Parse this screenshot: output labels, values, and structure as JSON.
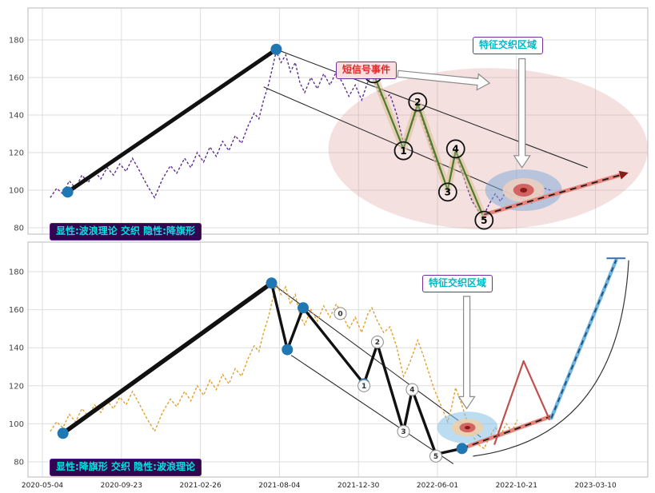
{
  "axes": {
    "x_ticks": [
      "2020-05-04",
      "2020-09-23",
      "2021-02-26",
      "2021-08-04",
      "2021-12-30",
      "2022-06-01",
      "2022-10-21",
      "2023-03-10"
    ],
    "y_ticks": [
      180,
      160,
      140,
      120,
      100,
      80
    ]
  },
  "labels": {
    "top_corner": "显性:波浪理论 交织 隐性:降旗形",
    "top_signal": "短信号事件",
    "top_region": "特征交织区域",
    "bottom_region": "特征交织区域",
    "bottom_corner": "显性:降旗形 交织 隐性:波浪理论"
  },
  "colors": {
    "purple_line": "#5c2d91",
    "orange_line": "#e0a030",
    "trend": "#111111",
    "green": "#4f7a28",
    "halo": "#d9c19a",
    "salmon": "#e8837a",
    "red": "#c0504d",
    "dark_red": "#8b1a1a",
    "blue_dot": "#1f77b4",
    "blue_rise": "#6ab4e4",
    "navy": "#2b4a6b",
    "pink_region": "#d98c8c",
    "target_blue": "#7ba7d7",
    "cyan_text": "#00b8c8",
    "purple_border": "#7030a0"
  },
  "chart_data": [
    {
      "type": "line",
      "name": "elliott-wave-explicit",
      "ylim": [
        76,
        197
      ],
      "price_series": [
        [
          0.1,
          96
        ],
        [
          0.18,
          101
        ],
        [
          0.26,
          98
        ],
        [
          0.34,
          105
        ],
        [
          0.42,
          101
        ],
        [
          0.5,
          108
        ],
        [
          0.58,
          104
        ],
        [
          0.66,
          110
        ],
        [
          0.74,
          106
        ],
        [
          0.82,
          112
        ],
        [
          0.9,
          108
        ],
        [
          0.98,
          114
        ],
        [
          1.06,
          110
        ],
        [
          1.14,
          117
        ],
        [
          1.22,
          111
        ],
        [
          1.32,
          103
        ],
        [
          1.42,
          96
        ],
        [
          1.52,
          106
        ],
        [
          1.62,
          113
        ],
        [
          1.7,
          109
        ],
        [
          1.8,
          117
        ],
        [
          1.88,
          112
        ],
        [
          1.96,
          120
        ],
        [
          2.04,
          115
        ],
        [
          2.12,
          123
        ],
        [
          2.2,
          118
        ],
        [
          2.28,
          126
        ],
        [
          2.36,
          121
        ],
        [
          2.44,
          129
        ],
        [
          2.52,
          125
        ],
        [
          2.6,
          134
        ],
        [
          2.68,
          141
        ],
        [
          2.74,
          138
        ],
        [
          2.8,
          148
        ],
        [
          2.86,
          156
        ],
        [
          2.9,
          163
        ],
        [
          2.96,
          174
        ],
        [
          3.02,
          168
        ],
        [
          3.08,
          172
        ],
        [
          3.14,
          163
        ],
        [
          3.2,
          168
        ],
        [
          3.26,
          157
        ],
        [
          3.32,
          152
        ],
        [
          3.4,
          160
        ],
        [
          3.48,
          154
        ],
        [
          3.56,
          162
        ],
        [
          3.64,
          156
        ],
        [
          3.72,
          163
        ],
        [
          3.8,
          157
        ],
        [
          3.88,
          150
        ],
        [
          3.96,
          156
        ],
        [
          4.04,
          148
        ],
        [
          4.12,
          158
        ],
        [
          4.17,
          161
        ],
        [
          4.24,
          154
        ],
        [
          4.32,
          148
        ],
        [
          4.4,
          151
        ],
        [
          4.48,
          141
        ],
        [
          4.57,
          125
        ],
        [
          4.63,
          130
        ],
        [
          4.7,
          138
        ],
        [
          4.75,
          144
        ],
        [
          4.82,
          136
        ],
        [
          4.89,
          127
        ],
        [
          4.96,
          118
        ],
        [
          5.04,
          110
        ],
        [
          5.13,
          101
        ],
        [
          5.18,
          109
        ],
        [
          5.23,
          119
        ],
        [
          5.3,
          111
        ],
        [
          5.37,
          102
        ],
        [
          5.44,
          94
        ],
        [
          5.52,
          89
        ],
        [
          5.59,
          87
        ],
        [
          5.66,
          93
        ],
        [
          5.73,
          98
        ],
        [
          5.8,
          94
        ],
        [
          5.87,
          100
        ],
        [
          5.94,
          96
        ],
        [
          6.01,
          102
        ],
        [
          6.08,
          98
        ],
        [
          6.15,
          103
        ],
        [
          6.22,
          99
        ],
        [
          6.29,
          97
        ],
        [
          6.36,
          101
        ],
        [
          6.43,
          100
        ]
      ],
      "trend_line": [
        [
          0.32,
          99
        ],
        [
          2.96,
          175
        ]
      ],
      "channel_lines": [
        [
          [
            2.96,
            175
          ],
          [
            6.9,
            112
          ]
        ],
        [
          [
            2.8,
            155
          ],
          [
            6.2,
            93
          ]
        ]
      ],
      "wave_line": [
        [
          4.19,
          162
        ],
        [
          4.57,
          122
        ],
        [
          4.75,
          146
        ],
        [
          5.13,
          100
        ],
        [
          5.23,
          121
        ],
        [
          5.59,
          85
        ]
      ],
      "wave_markers": [
        {
          "label": "0",
          "x": 4.19,
          "y": 162
        },
        {
          "label": "1",
          "x": 4.57,
          "y": 121
        },
        {
          "label": "2",
          "x": 4.75,
          "y": 147
        },
        {
          "label": "3",
          "x": 5.13,
          "y": 99
        },
        {
          "label": "4",
          "x": 5.23,
          "y": 122
        },
        {
          "label": "5",
          "x": 5.59,
          "y": 84
        }
      ],
      "pivot_dots": [
        [
          0.32,
          99
        ],
        [
          2.96,
          175
        ]
      ],
      "region_ellipse": {
        "cx": 5.64,
        "cy": 122,
        "rx": 2.02,
        "ry": 43
      },
      "target": {
        "cx": 6.09,
        "cy": 100
      },
      "projection": [
        [
          5.59,
          87
        ],
        [
          7.31,
          108
        ]
      ],
      "projection_arrow": true,
      "arrows": [
        {
          "from": [
            4.5,
            162
          ],
          "to": [
            5.66,
            157
          ]
        },
        {
          "from": [
            6.07,
            170
          ],
          "to": [
            6.07,
            112
          ]
        }
      ]
    },
    {
      "type": "line",
      "name": "descending-flag-explicit",
      "ylim": [
        72,
        196
      ],
      "price_series": [
        [
          0.1,
          96
        ],
        [
          0.18,
          101
        ],
        [
          0.26,
          98
        ],
        [
          0.34,
          105
        ],
        [
          0.42,
          101
        ],
        [
          0.5,
          108
        ],
        [
          0.58,
          104
        ],
        [
          0.66,
          110
        ],
        [
          0.74,
          106
        ],
        [
          0.82,
          112
        ],
        [
          0.9,
          108
        ],
        [
          0.98,
          114
        ],
        [
          1.06,
          110
        ],
        [
          1.14,
          117
        ],
        [
          1.22,
          111
        ],
        [
          1.32,
          103
        ],
        [
          1.42,
          96
        ],
        [
          1.52,
          106
        ],
        [
          1.62,
          113
        ],
        [
          1.7,
          109
        ],
        [
          1.8,
          117
        ],
        [
          1.88,
          112
        ],
        [
          1.96,
          120
        ],
        [
          2.04,
          115
        ],
        [
          2.12,
          123
        ],
        [
          2.2,
          118
        ],
        [
          2.28,
          126
        ],
        [
          2.36,
          121
        ],
        [
          2.44,
          129
        ],
        [
          2.52,
          125
        ],
        [
          2.6,
          134
        ],
        [
          2.68,
          141
        ],
        [
          2.74,
          138
        ],
        [
          2.8,
          148
        ],
        [
          2.86,
          156
        ],
        [
          2.9,
          163
        ],
        [
          2.96,
          174
        ],
        [
          3.02,
          168
        ],
        [
          3.08,
          172
        ],
        [
          3.14,
          163
        ],
        [
          3.2,
          168
        ],
        [
          3.26,
          157
        ],
        [
          3.32,
          152
        ],
        [
          3.4,
          160
        ],
        [
          3.48,
          154
        ],
        [
          3.56,
          162
        ],
        [
          3.64,
          156
        ],
        [
          3.72,
          163
        ],
        [
          3.8,
          157
        ],
        [
          3.88,
          150
        ],
        [
          3.96,
          156
        ],
        [
          4.04,
          148
        ],
        [
          4.12,
          158
        ],
        [
          4.17,
          161
        ],
        [
          4.24,
          154
        ],
        [
          4.32,
          148
        ],
        [
          4.4,
          151
        ],
        [
          4.48,
          141
        ],
        [
          4.57,
          125
        ],
        [
          4.63,
          130
        ],
        [
          4.7,
          138
        ],
        [
          4.75,
          144
        ],
        [
          4.82,
          136
        ],
        [
          4.89,
          127
        ],
        [
          4.96,
          118
        ],
        [
          5.04,
          110
        ],
        [
          5.13,
          101
        ],
        [
          5.18,
          109
        ],
        [
          5.23,
          119
        ],
        [
          5.3,
          111
        ],
        [
          5.37,
          102
        ],
        [
          5.44,
          94
        ],
        [
          5.52,
          89
        ],
        [
          5.59,
          87
        ],
        [
          5.66,
          93
        ],
        [
          5.73,
          98
        ],
        [
          5.8,
          94
        ],
        [
          5.87,
          100
        ],
        [
          5.94,
          96
        ],
        [
          6.01,
          102
        ]
      ],
      "pole_line": [
        [
          0.26,
          95
        ],
        [
          2.9,
          174
        ]
      ],
      "flag_zigzag": [
        [
          2.9,
          174
        ],
        [
          3.1,
          139
        ],
        [
          3.3,
          161
        ],
        [
          4.07,
          121
        ],
        [
          4.24,
          142
        ],
        [
          4.57,
          96
        ],
        [
          4.68,
          118
        ],
        [
          4.98,
          84
        ],
        [
          5.31,
          87
        ]
      ],
      "channel_lines": [
        [
          [
            2.9,
            174
          ],
          [
            5.55,
            93
          ]
        ],
        [
          [
            3.15,
            136
          ],
          [
            5.2,
            79
          ]
        ]
      ],
      "wave_markers": [
        {
          "label": "0",
          "x": 3.77,
          "y": 158
        },
        {
          "label": "1",
          "x": 4.07,
          "y": 120
        },
        {
          "label": "2",
          "x": 4.24,
          "y": 143
        },
        {
          "label": "3",
          "x": 4.57,
          "y": 96
        },
        {
          "label": "4",
          "x": 4.68,
          "y": 118
        },
        {
          "label": "5",
          "x": 4.98,
          "y": 83
        }
      ],
      "pivot_dots": [
        [
          0.26,
          95
        ],
        [
          2.9,
          174
        ],
        [
          3.1,
          139
        ],
        [
          3.3,
          161
        ],
        [
          4.07,
          121
        ],
        [
          5.31,
          87
        ]
      ],
      "target": {
        "cx": 5.38,
        "cy": 98
      },
      "projection": [
        [
          5.31,
          87
        ],
        [
          6.44,
          104
        ]
      ],
      "projection_arrow": false,
      "red_spike": [
        [
          5.72,
          89
        ],
        [
          6.09,
          133
        ],
        [
          6.42,
          102
        ]
      ],
      "blue_projection": {
        "line": [
          [
            6.44,
            103
          ],
          [
            7.26,
            186
          ]
        ],
        "cap": [
          [
            7.14,
            187
          ],
          [
            7.38,
            187
          ]
        ]
      },
      "arc": {
        "start": [
          5.45,
          83
        ],
        "control": [
          7.3,
          93
        ],
        "end": [
          7.42,
          186
        ]
      },
      "arrows": [
        {
          "from": [
            5.37,
            167
          ],
          "to": [
            5.37,
            108
          ]
        }
      ]
    }
  ]
}
